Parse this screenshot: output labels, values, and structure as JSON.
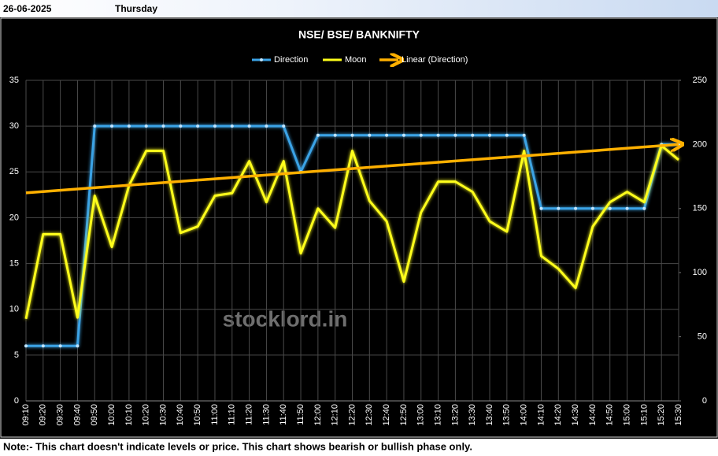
{
  "header": {
    "date": "26-06-2025",
    "day": "Thursday"
  },
  "chart_data": {
    "type": "line",
    "title": "NSE/ BSE/ BANKNIFTY",
    "categories": [
      "09:10",
      "09:20",
      "09:30",
      "09:40",
      "09:50",
      "10:00",
      "10:10",
      "10:20",
      "10:30",
      "10:40",
      "10:50",
      "11:00",
      "11:10",
      "11:20",
      "11:30",
      "11:40",
      "11:50",
      "12:00",
      "12:10",
      "12:20",
      "12:30",
      "12:40",
      "12:50",
      "13:00",
      "13:10",
      "13:20",
      "13:30",
      "13:40",
      "13:50",
      "14:00",
      "14:10",
      "14:20",
      "14:30",
      "14:40",
      "14:50",
      "15:00",
      "15:10",
      "15:20",
      "15:30"
    ],
    "series": [
      {
        "name": "Direction",
        "color": "#3ba3e6",
        "values": [
          6,
          6,
          6,
          6,
          30,
          30,
          30,
          30,
          30,
          30,
          30,
          30,
          30,
          30,
          30,
          30,
          25,
          29,
          29,
          29,
          29,
          29,
          29,
          29,
          29,
          29,
          29,
          29,
          29,
          29,
          21,
          21,
          21,
          21,
          21,
          21,
          21,
          28,
          28
        ]
      },
      {
        "name": "Moon",
        "color": "#ffff1a",
        "axis": "y2",
        "values": [
          64,
          130,
          130,
          65,
          160,
          120,
          168,
          195,
          195,
          131,
          136,
          160,
          162,
          187,
          155,
          187,
          115,
          150,
          135,
          195,
          156,
          140,
          93,
          147,
          171,
          171,
          163,
          140,
          132,
          195,
          113,
          103,
          88,
          136,
          155,
          163,
          155,
          199,
          188
        ]
      }
    ],
    "trendline": {
      "name": "Linear (Direction)",
      "color": "#ffb000"
    },
    "ylim": [
      0,
      35
    ],
    "yticks": [
      0,
      5,
      10,
      15,
      20,
      25,
      30,
      35
    ],
    "y2lim": [
      0,
      250
    ],
    "y2ticks": [
      0,
      50,
      100,
      150,
      200,
      250
    ],
    "grid": true
  },
  "watermark": "stocklord.in",
  "note": "Note:- This chart doesn't indicate levels or price. This chart shows bearish or bullish phase only."
}
